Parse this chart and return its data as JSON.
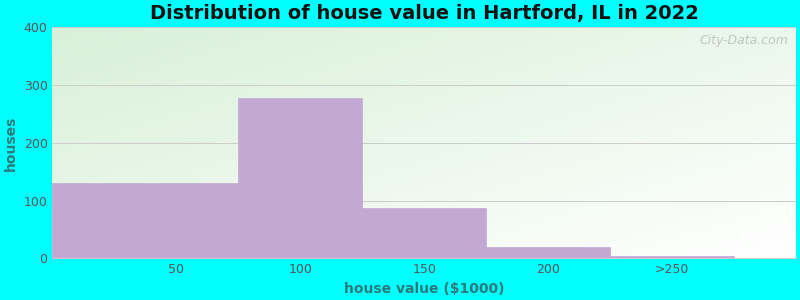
{
  "title": "Distribution of house value in Hartford, IL in 2022",
  "xlabel": "house value ($1000)",
  "ylabel": "houses",
  "bar_heights": [
    130,
    278,
    87,
    20,
    5
  ],
  "bar_color": "#C4A8D4",
  "ylim": [
    0,
    400
  ],
  "yticks": [
    0,
    100,
    200,
    300,
    400
  ],
  "xlim": [
    0,
    300
  ],
  "xtick_positions": [
    50,
    100,
    150,
    200,
    250
  ],
  "xtick_labels": [
    "50",
    "100",
    "150",
    "200",
    ">250"
  ],
  "bar_lefts": [
    0,
    75,
    125,
    175,
    225
  ],
  "bar_widths": [
    75,
    50,
    50,
    50,
    50
  ],
  "background_outer": "#00FFFF",
  "bg_color_topleft": "#d8f0d8",
  "bg_color_topright": "#e8f8f0",
  "bg_color_bottomright": "#ffffff",
  "grid_color": "#cccccc",
  "title_fontsize": 14,
  "axis_label_fontsize": 10,
  "tick_fontsize": 9,
  "title_color": "#111111",
  "axis_label_color": "#2a7a7a",
  "tick_color": "#555555",
  "watermark": "City-Data.com",
  "watermark_color": "#bbbbbb"
}
